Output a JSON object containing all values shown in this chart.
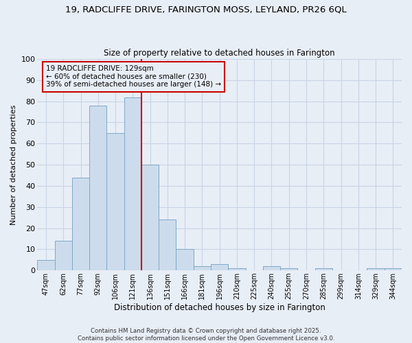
{
  "title_line1": "19, RADCLIFFE DRIVE, FARINGTON MOSS, LEYLAND, PR26 6QL",
  "title_line2": "Size of property relative to detached houses in Farington",
  "xlabel": "Distribution of detached houses by size in Farington",
  "ylabel": "Number of detached properties",
  "categories": [
    "47sqm",
    "62sqm",
    "77sqm",
    "92sqm",
    "106sqm",
    "121sqm",
    "136sqm",
    "151sqm",
    "166sqm",
    "181sqm",
    "196sqm",
    "210sqm",
    "225sqm",
    "240sqm",
    "255sqm",
    "270sqm",
    "285sqm",
    "299sqm",
    "314sqm",
    "329sqm",
    "344sqm"
  ],
  "values": [
    5,
    14,
    44,
    78,
    65,
    82,
    50,
    24,
    10,
    2,
    3,
    1,
    0,
    2,
    1,
    0,
    1,
    0,
    0,
    1,
    1
  ],
  "bar_color": "#ccdcec",
  "bar_edge_color": "#80a8c8",
  "grid_color": "#c8d4e4",
  "bg_color": "#e8eef6",
  "plot_bg_color": "#e8eef6",
  "vline_x": 5.5,
  "vline_color": "#cc0000",
  "annotation_text": "19 RADCLIFFE DRIVE: 129sqm\n← 60% of detached houses are smaller (230)\n39% of semi-detached houses are larger (148) →",
  "annotation_box_color": "#cc0000",
  "ylim": [
    0,
    100
  ],
  "yticks": [
    0,
    10,
    20,
    30,
    40,
    50,
    60,
    70,
    80,
    90,
    100
  ],
  "footer": "Contains HM Land Registry data © Crown copyright and database right 2025.\nContains public sector information licensed under the Open Government Licence v3.0."
}
